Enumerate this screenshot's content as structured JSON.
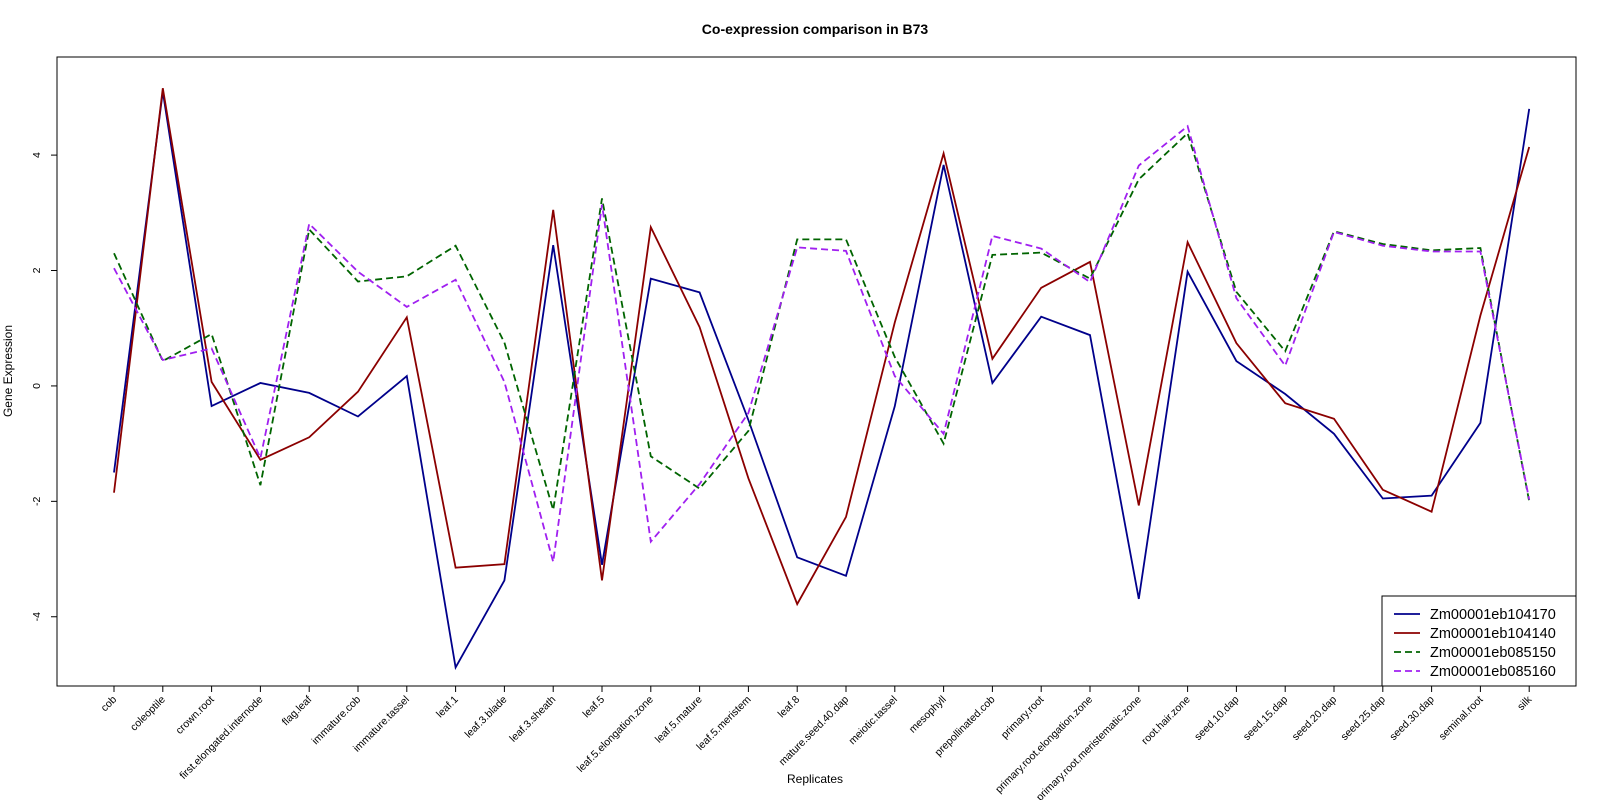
{
  "chart_data": {
    "type": "line",
    "title": "Co-expression comparison in B73",
    "xlabel": "Replicates",
    "ylabel": "Gene Expression",
    "ylim": [
      -5.2,
      5.7
    ],
    "yticks": [
      -4,
      -2,
      0,
      2,
      4
    ],
    "ytick_labels": [
      "-4",
      "-2",
      "0",
      "2",
      "4"
    ],
    "grid": false,
    "legend_position": "bottom-right",
    "categories": [
      "cob",
      "coleoptile",
      "crown.root",
      "first.elongated.internode",
      "flag.leaf",
      "immature.cob",
      "immature.tassel",
      "leaf.1",
      "leaf.3.blade",
      "leaf.3.sheath",
      "leaf.5",
      "leaf.5.elongation.zone",
      "leaf.5.mature",
      "leaf.5.meristem",
      "leaf.8",
      "mature.seed.40.dap",
      "meiotic.tassel",
      "mesophyll",
      "prepollinated.cob",
      "primary.root",
      "primary.root.elongation.zone",
      "primary.root.meristematic.zone",
      "root.hair.zone",
      "seed.10.dap",
      "seed.15.dap",
      "seed.20.dap",
      "seed.25.dap",
      "seed.30.dap",
      "seminal.root",
      "silk"
    ],
    "series": [
      {
        "name": "Zm00001eb104170",
        "color": "#00008b",
        "dash": "solid",
        "values": [
          -1.5,
          5.1,
          -0.35,
          0.05,
          -0.12,
          -0.53,
          0.17,
          -4.88,
          -3.37,
          2.44,
          -3.1,
          1.86,
          1.62,
          -0.59,
          -2.97,
          -3.29,
          -0.35,
          3.83,
          0.05,
          1.2,
          0.88,
          -3.69,
          1.98,
          0.43,
          -0.14,
          -0.83,
          -1.95,
          -1.9,
          -0.64,
          4.8
        ]
      },
      {
        "name": "Zm00001eb104140",
        "color": "#8b0000",
        "dash": "solid",
        "values": [
          -1.85,
          5.16,
          0.07,
          -1.28,
          -0.89,
          -0.1,
          1.19,
          -3.15,
          -3.09,
          3.05,
          -3.37,
          2.75,
          1.02,
          -1.6,
          -3.78,
          -2.27,
          1.1,
          4.03,
          0.47,
          1.7,
          2.15,
          -2.07,
          2.49,
          0.74,
          -0.3,
          -0.57,
          -1.8,
          -2.18,
          1.22,
          4.14
        ]
      },
      {
        "name": "Zm00001eb085150",
        "color": "#006400",
        "dash": "dashed",
        "values": [
          2.3,
          0.43,
          0.9,
          -1.72,
          2.71,
          1.81,
          1.9,
          2.43,
          0.75,
          -2.15,
          3.25,
          -1.22,
          -1.78,
          -0.78,
          2.54,
          2.54,
          0.5,
          -1.0,
          2.27,
          2.31,
          1.86,
          3.58,
          4.38,
          1.63,
          0.6,
          2.68,
          2.46,
          2.35,
          2.39,
          -2.0
        ]
      },
      {
        "name": "Zm00001eb085160",
        "color": "#a020f0",
        "dash": "dashed",
        "values": [
          2.04,
          0.45,
          0.65,
          -1.25,
          2.81,
          1.98,
          1.37,
          1.84,
          0.07,
          -3.05,
          3.14,
          -2.7,
          -1.7,
          -0.47,
          2.4,
          2.34,
          0.17,
          -0.83,
          2.6,
          2.38,
          1.8,
          3.82,
          4.5,
          1.52,
          0.35,
          2.67,
          2.43,
          2.33,
          2.33,
          -1.97
        ]
      }
    ]
  }
}
